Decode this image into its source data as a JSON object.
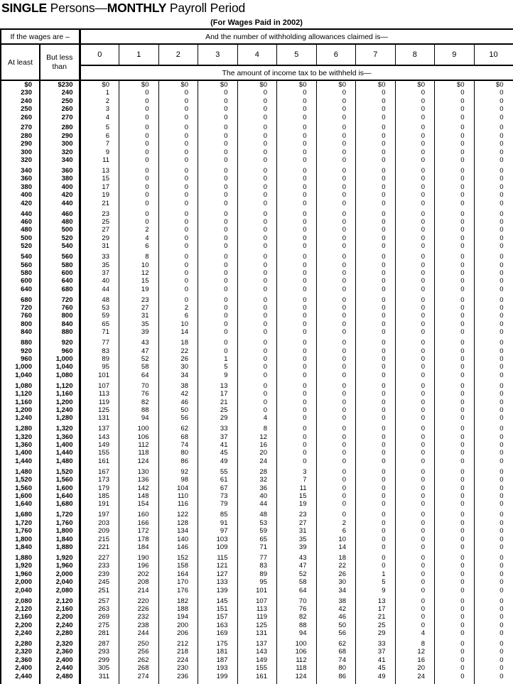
{
  "title": {
    "word1": "SINGLE",
    "sep1": " Persons—",
    "word2": "MONTHLY",
    "sep2": " Payroll Period"
  },
  "subtitle": "(For Wages Paid in 2002)",
  "header": {
    "wages_label": "If the wages are –",
    "allowances_label": "And the number of withholding allowances claimed is—",
    "at_least": "At least",
    "but_less_than": "But less than",
    "amount_label": "The amount of income tax to be withheld is—",
    "allowance_headers": [
      "0",
      "1",
      "2",
      "3",
      "4",
      "5",
      "6",
      "7",
      "8",
      "9",
      "10"
    ]
  },
  "table": {
    "groups": [
      [
        [
          "$0",
          "$230",
          "$0",
          "$0",
          "$0",
          "$0",
          "$0",
          "$0",
          "$0",
          "$0",
          "$0",
          "$0",
          "$0"
        ],
        [
          "230",
          "240",
          "1",
          "0",
          "0",
          "0",
          "0",
          "0",
          "0",
          "0",
          "0",
          "0",
          "0"
        ],
        [
          "240",
          "250",
          "2",
          "0",
          "0",
          "0",
          "0",
          "0",
          "0",
          "0",
          "0",
          "0",
          "0"
        ],
        [
          "250",
          "260",
          "3",
          "0",
          "0",
          "0",
          "0",
          "0",
          "0",
          "0",
          "0",
          "0",
          "0"
        ],
        [
          "260",
          "270",
          "4",
          "0",
          "0",
          "0",
          "0",
          "0",
          "0",
          "0",
          "0",
          "0",
          "0"
        ]
      ],
      [
        [
          "270",
          "280",
          "5",
          "0",
          "0",
          "0",
          "0",
          "0",
          "0",
          "0",
          "0",
          "0",
          "0"
        ],
        [
          "280",
          "290",
          "6",
          "0",
          "0",
          "0",
          "0",
          "0",
          "0",
          "0",
          "0",
          "0",
          "0"
        ],
        [
          "290",
          "300",
          "7",
          "0",
          "0",
          "0",
          "0",
          "0",
          "0",
          "0",
          "0",
          "0",
          "0"
        ],
        [
          "300",
          "320",
          "9",
          "0",
          "0",
          "0",
          "0",
          "0",
          "0",
          "0",
          "0",
          "0",
          "0"
        ],
        [
          "320",
          "340",
          "11",
          "0",
          "0",
          "0",
          "0",
          "0",
          "0",
          "0",
          "0",
          "0",
          "0"
        ]
      ],
      [
        [
          "340",
          "360",
          "13",
          "0",
          "0",
          "0",
          "0",
          "0",
          "0",
          "0",
          "0",
          "0",
          "0"
        ],
        [
          "360",
          "380",
          "15",
          "0",
          "0",
          "0",
          "0",
          "0",
          "0",
          "0",
          "0",
          "0",
          "0"
        ],
        [
          "380",
          "400",
          "17",
          "0",
          "0",
          "0",
          "0",
          "0",
          "0",
          "0",
          "0",
          "0",
          "0"
        ],
        [
          "400",
          "420",
          "19",
          "0",
          "0",
          "0",
          "0",
          "0",
          "0",
          "0",
          "0",
          "0",
          "0"
        ],
        [
          "420",
          "440",
          "21",
          "0",
          "0",
          "0",
          "0",
          "0",
          "0",
          "0",
          "0",
          "0",
          "0"
        ]
      ],
      [
        [
          "440",
          "460",
          "23",
          "0",
          "0",
          "0",
          "0",
          "0",
          "0",
          "0",
          "0",
          "0",
          "0"
        ],
        [
          "460",
          "480",
          "25",
          "0",
          "0",
          "0",
          "0",
          "0",
          "0",
          "0",
          "0",
          "0",
          "0"
        ],
        [
          "480",
          "500",
          "27",
          "2",
          "0",
          "0",
          "0",
          "0",
          "0",
          "0",
          "0",
          "0",
          "0"
        ],
        [
          "500",
          "520",
          "29",
          "4",
          "0",
          "0",
          "0",
          "0",
          "0",
          "0",
          "0",
          "0",
          "0"
        ],
        [
          "520",
          "540",
          "31",
          "6",
          "0",
          "0",
          "0",
          "0",
          "0",
          "0",
          "0",
          "0",
          "0"
        ]
      ],
      [
        [
          "540",
          "560",
          "33",
          "8",
          "0",
          "0",
          "0",
          "0",
          "0",
          "0",
          "0",
          "0",
          "0"
        ],
        [
          "560",
          "580",
          "35",
          "10",
          "0",
          "0",
          "0",
          "0",
          "0",
          "0",
          "0",
          "0",
          "0"
        ],
        [
          "580",
          "600",
          "37",
          "12",
          "0",
          "0",
          "0",
          "0",
          "0",
          "0",
          "0",
          "0",
          "0"
        ],
        [
          "600",
          "640",
          "40",
          "15",
          "0",
          "0",
          "0",
          "0",
          "0",
          "0",
          "0",
          "0",
          "0"
        ],
        [
          "640",
          "680",
          "44",
          "19",
          "0",
          "0",
          "0",
          "0",
          "0",
          "0",
          "0",
          "0",
          "0"
        ]
      ],
      [
        [
          "680",
          "720",
          "48",
          "23",
          "0",
          "0",
          "0",
          "0",
          "0",
          "0",
          "0",
          "0",
          "0"
        ],
        [
          "720",
          "760",
          "53",
          "27",
          "2",
          "0",
          "0",
          "0",
          "0",
          "0",
          "0",
          "0",
          "0"
        ],
        [
          "760",
          "800",
          "59",
          "31",
          "6",
          "0",
          "0",
          "0",
          "0",
          "0",
          "0",
          "0",
          "0"
        ],
        [
          "800",
          "840",
          "65",
          "35",
          "10",
          "0",
          "0",
          "0",
          "0",
          "0",
          "0",
          "0",
          "0"
        ],
        [
          "840",
          "880",
          "71",
          "39",
          "14",
          "0",
          "0",
          "0",
          "0",
          "0",
          "0",
          "0",
          "0"
        ]
      ],
      [
        [
          "880",
          "920",
          "77",
          "43",
          "18",
          "0",
          "0",
          "0",
          "0",
          "0",
          "0",
          "0",
          "0"
        ],
        [
          "920",
          "960",
          "83",
          "47",
          "22",
          "0",
          "0",
          "0",
          "0",
          "0",
          "0",
          "0",
          "0"
        ],
        [
          "960",
          "1,000",
          "89",
          "52",
          "26",
          "1",
          "0",
          "0",
          "0",
          "0",
          "0",
          "0",
          "0"
        ],
        [
          "1,000",
          "1,040",
          "95",
          "58",
          "30",
          "5",
          "0",
          "0",
          "0",
          "0",
          "0",
          "0",
          "0"
        ],
        [
          "1,040",
          "1,080",
          "101",
          "64",
          "34",
          "9",
          "0",
          "0",
          "0",
          "0",
          "0",
          "0",
          "0"
        ]
      ],
      [
        [
          "1,080",
          "1,120",
          "107",
          "70",
          "38",
          "13",
          "0",
          "0",
          "0",
          "0",
          "0",
          "0",
          "0"
        ],
        [
          "1,120",
          "1,160",
          "113",
          "76",
          "42",
          "17",
          "0",
          "0",
          "0",
          "0",
          "0",
          "0",
          "0"
        ],
        [
          "1,160",
          "1,200",
          "119",
          "82",
          "46",
          "21",
          "0",
          "0",
          "0",
          "0",
          "0",
          "0",
          "0"
        ],
        [
          "1,200",
          "1,240",
          "125",
          "88",
          "50",
          "25",
          "0",
          "0",
          "0",
          "0",
          "0",
          "0",
          "0"
        ],
        [
          "1,240",
          "1,280",
          "131",
          "94",
          "56",
          "29",
          "4",
          "0",
          "0",
          "0",
          "0",
          "0",
          "0"
        ]
      ],
      [
        [
          "1,280",
          "1,320",
          "137",
          "100",
          "62",
          "33",
          "8",
          "0",
          "0",
          "0",
          "0",
          "0",
          "0"
        ],
        [
          "1,320",
          "1,360",
          "143",
          "106",
          "68",
          "37",
          "12",
          "0",
          "0",
          "0",
          "0",
          "0",
          "0"
        ],
        [
          "1,360",
          "1,400",
          "149",
          "112",
          "74",
          "41",
          "16",
          "0",
          "0",
          "0",
          "0",
          "0",
          "0"
        ],
        [
          "1,400",
          "1,440",
          "155",
          "118",
          "80",
          "45",
          "20",
          "0",
          "0",
          "0",
          "0",
          "0",
          "0"
        ],
        [
          "1,440",
          "1,480",
          "161",
          "124",
          "86",
          "49",
          "24",
          "0",
          "0",
          "0",
          "0",
          "0",
          "0"
        ]
      ],
      [
        [
          "1,480",
          "1,520",
          "167",
          "130",
          "92",
          "55",
          "28",
          "3",
          "0",
          "0",
          "0",
          "0",
          "0"
        ],
        [
          "1,520",
          "1,560",
          "173",
          "136",
          "98",
          "61",
          "32",
          "7",
          "0",
          "0",
          "0",
          "0",
          "0"
        ],
        [
          "1,560",
          "1,600",
          "179",
          "142",
          "104",
          "67",
          "36",
          "11",
          "0",
          "0",
          "0",
          "0",
          "0"
        ],
        [
          "1,600",
          "1,640",
          "185",
          "148",
          "110",
          "73",
          "40",
          "15",
          "0",
          "0",
          "0",
          "0",
          "0"
        ],
        [
          "1,640",
          "1,680",
          "191",
          "154",
          "116",
          "79",
          "44",
          "19",
          "0",
          "0",
          "0",
          "0",
          "0"
        ]
      ],
      [
        [
          "1,680",
          "1,720",
          "197",
          "160",
          "122",
          "85",
          "48",
          "23",
          "0",
          "0",
          "0",
          "0",
          "0"
        ],
        [
          "1,720",
          "1,760",
          "203",
          "166",
          "128",
          "91",
          "53",
          "27",
          "2",
          "0",
          "0",
          "0",
          "0"
        ],
        [
          "1,760",
          "1,800",
          "209",
          "172",
          "134",
          "97",
          "59",
          "31",
          "6",
          "0",
          "0",
          "0",
          "0"
        ],
        [
          "1,800",
          "1,840",
          "215",
          "178",
          "140",
          "103",
          "65",
          "35",
          "10",
          "0",
          "0",
          "0",
          "0"
        ],
        [
          "1,840",
          "1,880",
          "221",
          "184",
          "146",
          "109",
          "71",
          "39",
          "14",
          "0",
          "0",
          "0",
          "0"
        ]
      ],
      [
        [
          "1,880",
          "1,920",
          "227",
          "190",
          "152",
          "115",
          "77",
          "43",
          "18",
          "0",
          "0",
          "0",
          "0"
        ],
        [
          "1,920",
          "1,960",
          "233",
          "196",
          "158",
          "121",
          "83",
          "47",
          "22",
          "0",
          "0",
          "0",
          "0"
        ],
        [
          "1,960",
          "2,000",
          "239",
          "202",
          "164",
          "127",
          "89",
          "52",
          "26",
          "1",
          "0",
          "0",
          "0"
        ],
        [
          "2,000",
          "2,040",
          "245",
          "208",
          "170",
          "133",
          "95",
          "58",
          "30",
          "5",
          "0",
          "0",
          "0"
        ],
        [
          "2,040",
          "2,080",
          "251",
          "214",
          "176",
          "139",
          "101",
          "64",
          "34",
          "9",
          "0",
          "0",
          "0"
        ]
      ],
      [
        [
          "2,080",
          "2,120",
          "257",
          "220",
          "182",
          "145",
          "107",
          "70",
          "38",
          "13",
          "0",
          "0",
          "0"
        ],
        [
          "2,120",
          "2,160",
          "263",
          "226",
          "188",
          "151",
          "113",
          "76",
          "42",
          "17",
          "0",
          "0",
          "0"
        ],
        [
          "2,160",
          "2,200",
          "269",
          "232",
          "194",
          "157",
          "119",
          "82",
          "46",
          "21",
          "0",
          "0",
          "0"
        ],
        [
          "2,200",
          "2,240",
          "275",
          "238",
          "200",
          "163",
          "125",
          "88",
          "50",
          "25",
          "0",
          "0",
          "0"
        ],
        [
          "2,240",
          "2,280",
          "281",
          "244",
          "206",
          "169",
          "131",
          "94",
          "56",
          "29",
          "4",
          "0",
          "0"
        ]
      ],
      [
        [
          "2,280",
          "2,320",
          "287",
          "250",
          "212",
          "175",
          "137",
          "100",
          "62",
          "33",
          "8",
          "0",
          "0"
        ],
        [
          "2,320",
          "2,360",
          "293",
          "256",
          "218",
          "181",
          "143",
          "106",
          "68",
          "37",
          "12",
          "0",
          "0"
        ],
        [
          "2,360",
          "2,400",
          "299",
          "262",
          "224",
          "187",
          "149",
          "112",
          "74",
          "41",
          "16",
          "0",
          "0"
        ],
        [
          "2,400",
          "2,440",
          "305",
          "268",
          "230",
          "193",
          "155",
          "118",
          "80",
          "45",
          "20",
          "0",
          "0"
        ],
        [
          "2,440",
          "2,480",
          "311",
          "274",
          "236",
          "199",
          "161",
          "124",
          "86",
          "49",
          "24",
          "0",
          "0"
        ]
      ]
    ]
  }
}
